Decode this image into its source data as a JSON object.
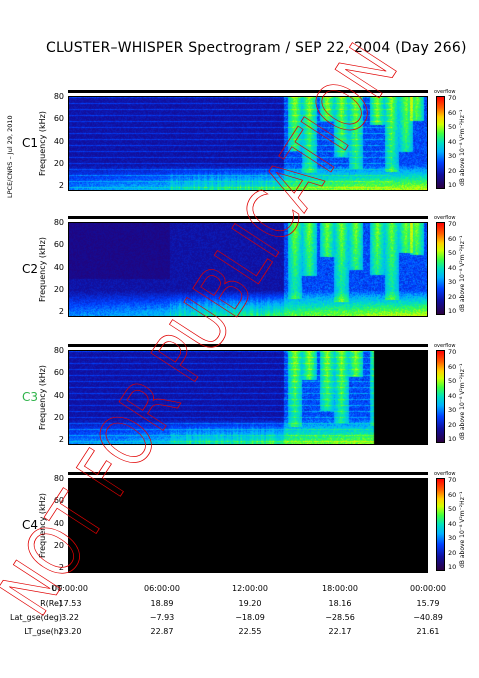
{
  "title": "CLUSTER–WHISPER Spectrogram / SEP 22, 2004 (Day 266)",
  "side_text": "LPCE/CNRS – Jul 29, 2010",
  "watermark": "NOT FOR PUBLICATION",
  "panels": [
    {
      "label": "C1",
      "label_color": "#000000",
      "ylabel": "Frequency (kHz)",
      "empty": false,
      "data_end_fraction": 1.0
    },
    {
      "label": "C2",
      "label_color": "#000000",
      "ylabel": "Frequency (kHz)",
      "empty": false,
      "data_end_fraction": 1.0
    },
    {
      "label": "C3",
      "label_color": "#2fb34a",
      "ylabel": "Frequency (kHz)",
      "empty": false,
      "data_end_fraction": 0.85
    },
    {
      "label": "C4",
      "label_color": "#000000",
      "ylabel": "Frequency (kHz)",
      "empty": true,
      "data_end_fraction": 0.0
    }
  ],
  "y_ticks": [
    "80",
    "60",
    "40",
    "20",
    "2"
  ],
  "colorbar": {
    "overflow_label": "overflow",
    "ticks": [
      "70",
      "60",
      "50",
      "40",
      "30",
      "20",
      "10"
    ],
    "unit": "dB above 10⁻⁸ V²m⁻²Hz⁻¹"
  },
  "chart_data": {
    "type": "heatmap",
    "title": "CLUSTER–WHISPER Spectrogram / SEP 22, 2004 (Day 266)",
    "ylabel": "Frequency (kHz)",
    "ylim": [
      2,
      80
    ],
    "x_ticks": [
      "00:00:00",
      "06:00:00",
      "12:00:00",
      "18:00:00",
      "00:00:00"
    ],
    "color_range_dB": [
      10,
      70
    ],
    "colorbar_label": "dB above 10⁻⁸ V²m⁻²Hz⁻¹",
    "series": [
      {
        "name": "C1"
      },
      {
        "name": "C2"
      },
      {
        "name": "C3"
      },
      {
        "name": "C4"
      }
    ],
    "ephemeris": {
      "UT": [
        "00:00:00",
        "06:00:00",
        "12:00:00",
        "18:00:00",
        "00:00:00"
      ],
      "R(Re)": [
        "17.53",
        "18.89",
        "19.20",
        "18.16",
        "15.79"
      ],
      "Lat_gse(deg)": [
        "3.22",
        "−7.93",
        "−18.09",
        "−28.56",
        "−40.89"
      ],
      "LT_gse(h)": [
        "23.20",
        "22.87",
        "22.55",
        "22.17",
        "21.61"
      ]
    }
  },
  "bottom_rows": [
    {
      "label": "UT",
      "values": [
        "00:00:00",
        "06:00:00",
        "12:00:00",
        "18:00:00",
        "00:00:00"
      ]
    },
    {
      "label": "R(Re)",
      "values": [
        "17.53",
        "18.89",
        "19.20",
        "18.16",
        "15.79"
      ]
    },
    {
      "label": "Lat_gse(deg)",
      "values": [
        "3.22",
        "−7.93",
        "−18.09",
        "−28.56",
        "−40.89"
      ]
    },
    {
      "label": "LT_gse(h)",
      "values": [
        "23.20",
        "22.87",
        "22.55",
        "22.17",
        "21.61"
      ]
    }
  ]
}
